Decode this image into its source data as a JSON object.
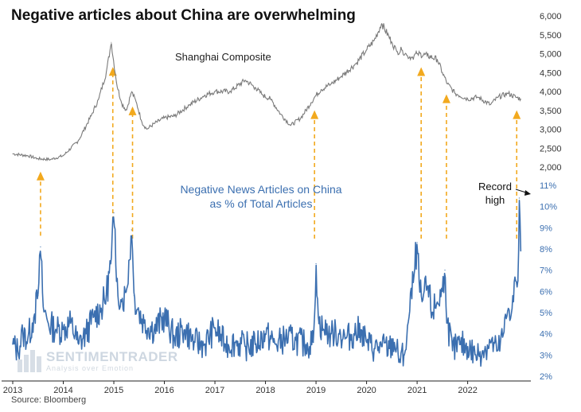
{
  "title": "Negative articles about China are overwhelming",
  "source": "Source: Bloomberg",
  "watermark": {
    "name": "SENTIMENTRADER",
    "tagline": "Analysis over Emotion"
  },
  "colors": {
    "shanghai": "#7a7a7a",
    "news": "#3b6fb0",
    "arrow": "#f2a91e",
    "title": "#111111"
  },
  "chart_data": {
    "type": "line",
    "x_ticks": [
      "2013",
      "2014",
      "2015",
      "2016",
      "2017",
      "2018",
      "2019",
      "2020",
      "2021",
      "2022"
    ],
    "xlim": [
      2013.0,
      2023.25
    ],
    "axes": {
      "shanghai": {
        "ylim": [
          2000,
          6000
        ],
        "ticks": [
          "2,000",
          "2,500",
          "3,000",
          "3,500",
          "4,000",
          "4,500",
          "5,000",
          "5,500",
          "6,000"
        ],
        "tick_values": [
          2000,
          2500,
          3000,
          3500,
          4000,
          4500,
          5000,
          5500,
          6000
        ]
      },
      "news": {
        "ylim": [
          2,
          11
        ],
        "ticks": [
          "2%",
          "3%",
          "4%",
          "5%",
          "6%",
          "7%",
          "8%",
          "9%",
          "10%",
          "11%"
        ],
        "tick_values": [
          2,
          3,
          4,
          5,
          6,
          7,
          8,
          9,
          10,
          11
        ]
      }
    },
    "series": [
      {
        "name": "Shanghai Composite",
        "label": "Shanghai Composite",
        "axis": "shanghai",
        "x": [
          2013.0,
          2013.3,
          2013.5,
          2013.75,
          2014.0,
          2014.3,
          2014.55,
          2014.7,
          2014.85,
          2014.95,
          2015.05,
          2015.15,
          2015.25,
          2015.35,
          2015.45,
          2015.55,
          2015.65,
          2015.8,
          2016.0,
          2016.2,
          2016.5,
          2016.8,
          2017.0,
          2017.3,
          2017.6,
          2017.8,
          2017.95,
          2018.1,
          2018.3,
          2018.5,
          2018.7,
          2018.9,
          2019.0,
          2019.1,
          2019.3,
          2019.5,
          2019.8,
          2020.0,
          2020.15,
          2020.3,
          2020.5,
          2020.6,
          2020.7,
          2020.8,
          2020.9,
          2021.0,
          2021.2,
          2021.4,
          2021.5,
          2021.6,
          2021.75,
          2022.0,
          2022.2,
          2022.45,
          2022.6,
          2022.8,
          2022.95,
          2023.05
        ],
        "values": [
          2350,
          2300,
          2220,
          2200,
          2300,
          2700,
          3350,
          3800,
          4500,
          5300,
          4250,
          3700,
          3500,
          4000,
          3700,
          3200,
          3000,
          3150,
          3300,
          3350,
          3650,
          3900,
          4000,
          4000,
          4300,
          4100,
          3900,
          3800,
          3400,
          3100,
          3300,
          3700,
          3900,
          4050,
          4200,
          4400,
          4750,
          5100,
          5350,
          5800,
          5300,
          5050,
          5100,
          4950,
          4900,
          5000,
          4950,
          4850,
          4500,
          4200,
          3950,
          3800,
          3850,
          3650,
          3850,
          3950,
          3850,
          3800
        ]
      },
      {
        "name": "Negative News Articles on China as % of Total Articles",
        "label": [
          "Negative News Articles on China",
          "as % of Total Articles"
        ],
        "axis": "news",
        "x": [
          2013.0,
          2013.1,
          2013.2,
          2013.3,
          2013.42,
          2013.5,
          2013.55,
          2013.6,
          2013.7,
          2013.85,
          2014.0,
          2014.15,
          2014.3,
          2014.45,
          2014.6,
          2014.75,
          2014.85,
          2014.95,
          2015.0,
          2015.05,
          2015.15,
          2015.25,
          2015.35,
          2015.4,
          2015.5,
          2015.6,
          2015.8,
          2016.0,
          2016.2,
          2016.4,
          2016.6,
          2016.8,
          2017.0,
          2017.2,
          2017.4,
          2017.6,
          2017.8,
          2018.0,
          2018.2,
          2018.4,
          2018.6,
          2018.8,
          2018.95,
          2019.0,
          2019.05,
          2019.15,
          2019.3,
          2019.45,
          2019.6,
          2019.75,
          2019.9,
          2020.0,
          2020.15,
          2020.3,
          2020.45,
          2020.55,
          2020.65,
          2020.75,
          2020.85,
          2020.95,
          2021.0,
          2021.05,
          2021.1,
          2021.2,
          2021.3,
          2021.4,
          2021.5,
          2021.55,
          2021.6,
          2021.7,
          2021.85,
          2022.0,
          2022.15,
          2022.3,
          2022.45,
          2022.6,
          2022.7,
          2022.8,
          2022.88,
          2022.95,
          2023.0,
          2023.02,
          2023.05
        ],
        "values": [
          3.5,
          3.2,
          4.0,
          3.8,
          4.8,
          5.8,
          8.1,
          5.3,
          4.5,
          4.2,
          4.2,
          4.5,
          3.5,
          4.0,
          4.8,
          5.2,
          5.8,
          7.5,
          9.7,
          6.5,
          5.5,
          6.0,
          8.9,
          5.8,
          5.0,
          4.5,
          4.2,
          4.8,
          3.8,
          4.2,
          3.6,
          3.5,
          4.3,
          3.5,
          3.6,
          3.4,
          3.5,
          4.0,
          3.5,
          3.8,
          3.7,
          3.5,
          3.6,
          7.3,
          4.5,
          4.2,
          4.0,
          4.0,
          3.8,
          4.0,
          4.2,
          3.6,
          3.3,
          3.4,
          3.3,
          3.6,
          2.8,
          3.0,
          5.0,
          7.0,
          8.3,
          6.0,
          5.5,
          6.2,
          5.0,
          5.5,
          6.0,
          7.0,
          4.5,
          3.2,
          3.5,
          3.4,
          3.0,
          3.2,
          3.6,
          3.2,
          3.9,
          5.2,
          5.2,
          6.5,
          6.5,
          10.4,
          7.9
        ]
      }
    ],
    "annotations": {
      "record": [
        "Record",
        "high"
      ],
      "arrows": [
        2013.55,
        2014.98,
        2015.37,
        2018.97,
        2021.08,
        2021.58,
        2022.97
      ]
    }
  }
}
